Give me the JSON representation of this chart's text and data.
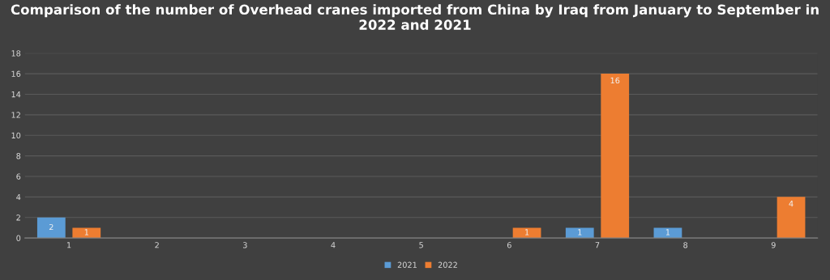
{
  "chart_data": {
    "type": "bar",
    "title": "Comparison of the number of Overhead cranes imported from China by Iraq from January to September in 2022 and 2021",
    "categories": [
      "1",
      "2",
      "3",
      "4",
      "5",
      "6",
      "7",
      "8",
      "9"
    ],
    "series": [
      {
        "name": "2021",
        "color": "#5b9bd5",
        "values": [
          2,
          0,
          0,
          0,
          0,
          0,
          1,
          1,
          0
        ],
        "value_labels": [
          "2",
          null,
          null,
          null,
          null,
          null,
          "1",
          "1",
          null
        ]
      },
      {
        "name": "2022",
        "color": "#ed7d31",
        "values": [
          1,
          0,
          0,
          0,
          0,
          1,
          16,
          0,
          4
        ],
        "value_labels": [
          "1",
          null,
          null,
          null,
          null,
          "1",
          "16",
          null,
          "4"
        ]
      }
    ],
    "ylim": [
      0,
      18
    ],
    "yticks": [
      0,
      2,
      4,
      6,
      8,
      10,
      12,
      14,
      16,
      18
    ],
    "grid": "y",
    "legend": "bottom"
  }
}
